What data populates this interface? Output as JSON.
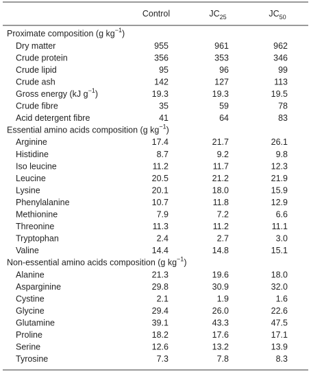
{
  "table": {
    "header": [
      {
        "text": "Control"
      },
      {
        "text": "JC",
        "sub": "25"
      },
      {
        "text": "JC",
        "sub": "50"
      }
    ],
    "sections": [
      {
        "title": {
          "text": "Proximate composition (g kg",
          "sup": "−1",
          "tail": ")"
        },
        "rows": [
          {
            "label": "Dry matter",
            "values": [
              "955",
              "961",
              "962"
            ]
          },
          {
            "label": "Crude protein",
            "values": [
              "356",
              "353",
              "346"
            ]
          },
          {
            "label": "Crude lipid",
            "values": [
              "95",
              "96",
              "99"
            ]
          },
          {
            "label": "Crude ash",
            "values": [
              "142",
              "127",
              "113"
            ]
          },
          {
            "label": {
              "text": "Gross energy (kJ g",
              "sup": "−1",
              "tail": ")"
            },
            "values": [
              "19.3",
              "19.3",
              "19.5"
            ]
          },
          {
            "label": "Crude fibre",
            "values": [
              "35",
              "59",
              "78"
            ]
          },
          {
            "label": "Acid detergent fibre",
            "values": [
              "41",
              "64",
              "83"
            ]
          }
        ]
      },
      {
        "title": {
          "text": "Essential amino acids composition (g kg",
          "sup": "−1",
          "tail": ")"
        },
        "rows": [
          {
            "label": "Arginine",
            "values": [
              "17.4",
              "21.7",
              "26.1"
            ]
          },
          {
            "label": "Histidine",
            "values": [
              "8.7",
              "9.2",
              "9.8"
            ]
          },
          {
            "label": "Iso leucine",
            "values": [
              "11.2",
              "11.7",
              "12.3"
            ]
          },
          {
            "label": "Leucine",
            "values": [
              "20.5",
              "21.2",
              "21.9"
            ]
          },
          {
            "label": "Lysine",
            "values": [
              "20.1",
              "18.0",
              "15.9"
            ]
          },
          {
            "label": "Phenylalanine",
            "values": [
              "10.7",
              "11.8",
              "12.9"
            ]
          },
          {
            "label": "Methionine",
            "values": [
              "7.9",
              "7.2",
              "6.6"
            ]
          },
          {
            "label": "Threonine",
            "values": [
              "11.3",
              "11.2",
              "11.1"
            ]
          },
          {
            "label": "Tryptophan",
            "values": [
              "2.4",
              "2.7",
              "3.0"
            ]
          },
          {
            "label": "Valine",
            "values": [
              "14.4",
              "14.8",
              "15.1"
            ]
          }
        ]
      },
      {
        "title": {
          "text": "Non-essential amino acids composition (g kg",
          "sup": "−1",
          "tail": ")"
        },
        "rows": [
          {
            "label": "Alanine",
            "values": [
              "21.3",
              "19.6",
              "18.0"
            ]
          },
          {
            "label": "Asparginine",
            "values": [
              "29.8",
              "30.9",
              "32.0"
            ]
          },
          {
            "label": "Cystine",
            "values": [
              "2.1",
              "1.9",
              "1.6"
            ]
          },
          {
            "label": "Glycine",
            "values": [
              "29.4",
              "26.0",
              "22.6"
            ]
          },
          {
            "label": "Glutamine",
            "values": [
              "39.1",
              "43.3",
              "47.5"
            ]
          },
          {
            "label": "Proline",
            "values": [
              "18.2",
              "17.6",
              "17.1"
            ]
          },
          {
            "label": "Serine",
            "values": [
              "12.6",
              "13.2",
              "13.9"
            ]
          },
          {
            "label": "Tyrosine",
            "values": [
              "7.3",
              "7.8",
              "8.3"
            ]
          }
        ]
      }
    ]
  }
}
